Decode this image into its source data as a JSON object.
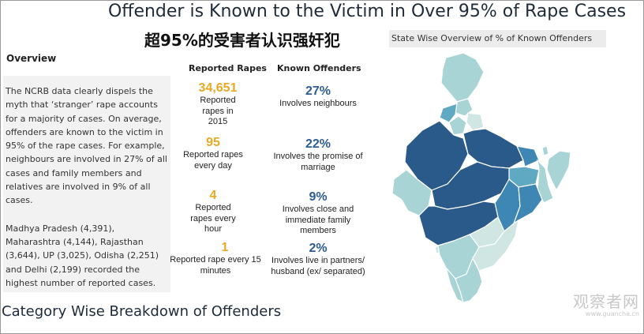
{
  "header": {
    "title": "Offender is Known to the Victim in Over 95% of Rape Cases",
    "subtitle_cn": "超95%的受害者认识强奸犯",
    "map_label": "State Wise Overview of % of Known Offenders"
  },
  "overview": {
    "heading": "Overview",
    "paragraph1": "The NCRB data clearly dispels the myth that ‘stranger’ rape accounts for a majority of cases. On average, offenders are known to the victim in 95% of the rape cases. For example, neighbours are involved in 27% of all cases and family members and relatives are involved in 9% of all cases.",
    "paragraph2": "Madhya Pradesh (4,391), Maharashtra (4,144), Rajasthan (3,644), UP (3,025), Odisha (2,251) and Delhi (2,199) recorded the highest number of reported cases."
  },
  "reported": {
    "heading": "Reported Rapes",
    "items": [
      {
        "value": "34,651",
        "desc": "Reported rapes in 2015"
      },
      {
        "value": "95",
        "desc": "Reported rapes every day"
      },
      {
        "value": "4",
        "desc": "Reported rapes every hour"
      },
      {
        "value": "1",
        "desc": "Reported rape every 15 minutes"
      }
    ]
  },
  "offenders": {
    "heading": "Known Offenders",
    "items": [
      {
        "value": "27%",
        "desc": "Involves neighbours"
      },
      {
        "value": "22%",
        "desc": "Involves the promise of marriage"
      },
      {
        "value": "9%",
        "desc": "Involves close and immediate family members"
      },
      {
        "value": "2%",
        "desc": "Involves live in partners/ husband (ex/ separated)"
      }
    ]
  },
  "footer": {
    "section_title": "Category Wise Breakdown of Offenders",
    "watermark_cn": "观察者网",
    "watermark_url": "www.guancha.cn"
  },
  "colors": {
    "accent_orange": "#e9a823",
    "accent_blue": "#2d5d94",
    "map_darkest": "#2a5a8a",
    "map_dark": "#3e86b3",
    "map_mid": "#5fa9c2",
    "map_light": "#a9d4d5",
    "map_lightest": "#cfe6e2"
  },
  "chart_data": {
    "type": "table",
    "columns": [
      "Reported Rapes",
      "Known Offenders"
    ],
    "rows": [
      [
        "34,651 — Reported rapes in 2015",
        "27% — Involves neighbours"
      ],
      [
        "95 — Reported rapes every day",
        "22% — Involves the promise of marriage"
      ],
      [
        "4 — Reported rapes every hour",
        "9% — Involves close and immediate family members"
      ],
      [
        "1 — Reported rape every 15 minutes",
        "2% — Involves live in partners/ husband (ex/ separated)"
      ]
    ],
    "map": {
      "type": "choropleth",
      "region": "India states",
      "legend": "none"
    }
  }
}
